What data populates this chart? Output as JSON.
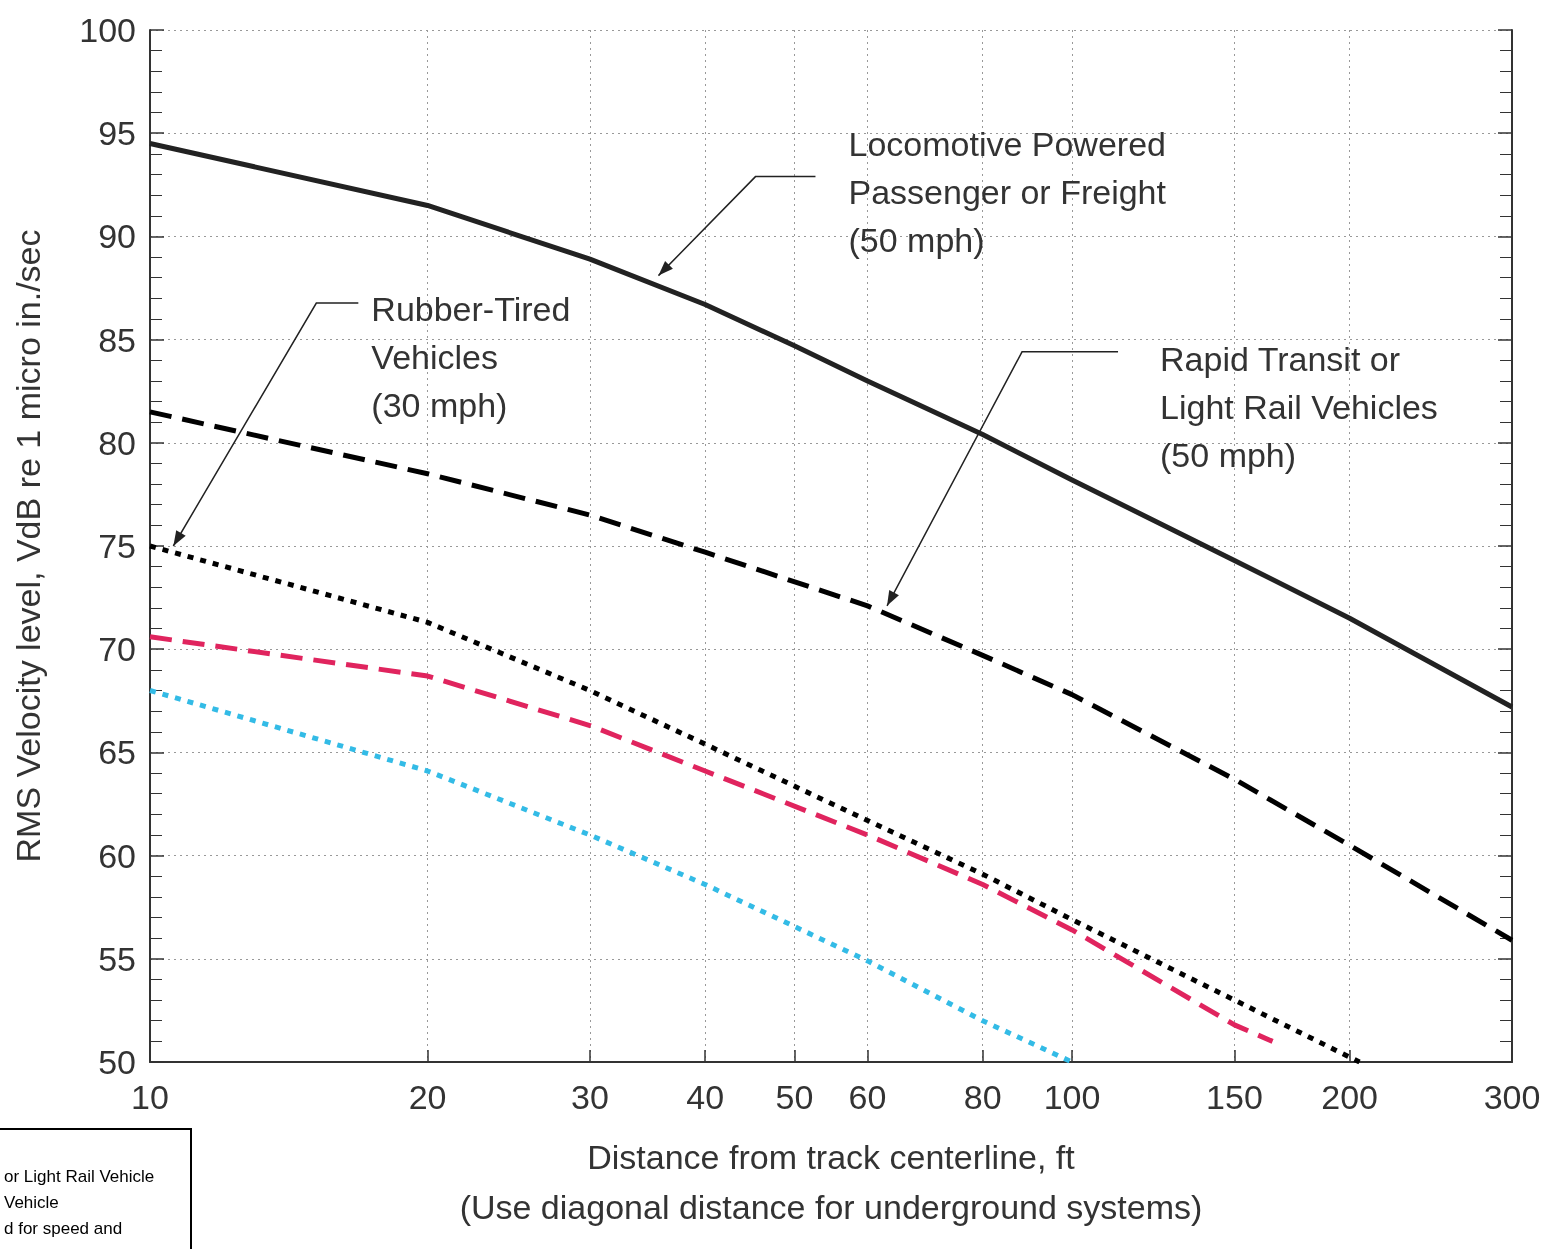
{
  "chart_data": {
    "type": "line",
    "xlabel": "Distance from track centerline, ft\n(Use diagonal distance for underground systems)",
    "ylabel": "RMS Velocity level, VdB re 1 micro in./sec",
    "log": "x",
    "xlim": [
      10,
      300
    ],
    "xticks": [
      10,
      20,
      30,
      40,
      50,
      60,
      80,
      100,
      150,
      200,
      300
    ],
    "ylim": [
      50,
      100
    ],
    "yticks": [
      50,
      55,
      60,
      65,
      70,
      75,
      80,
      85,
      90,
      95,
      100
    ],
    "grid": true,
    "legend": false,
    "marker": "none",
    "series": [
      {
        "name": "Locomotive Powered\nPassenger or Freight\n(50 mph)",
        "color": "#222222",
        "line_style": "solid",
        "x": [
          10,
          20,
          30,
          40,
          50,
          60,
          80,
          100,
          150,
          200,
          300
        ],
        "values": [
          94.5,
          91.5,
          88.9,
          86.7,
          84.7,
          83.0,
          80.4,
          78.2,
          74.3,
          71.5,
          67.2
        ]
      },
      {
        "name": "Rapid Transit or\nLight Rail Vehicles\n(50 mph)",
        "color": "#000000",
        "line_style": "dashed",
        "x": [
          10,
          20,
          30,
          40,
          60,
          80,
          100,
          150,
          200,
          300
        ],
        "values": [
          81.5,
          78.5,
          76.5,
          74.7,
          72.1,
          69.7,
          67.8,
          63.7,
          60.5,
          55.9
        ]
      },
      {
        "name": "Rubber-Tired\nVehicles\n(30 mph)",
        "color": "#000000",
        "line_style": "dotted",
        "x": [
          10,
          20,
          30,
          40,
          60,
          80,
          100,
          150,
          205
        ],
        "values": [
          75.0,
          71.3,
          68.0,
          65.4,
          61.7,
          59.1,
          56.9,
          53.0,
          50.0
        ]
      },
      {
        "color": "#e0245e",
        "line_style": "dashed",
        "x": [
          10,
          20,
          30,
          40,
          60,
          80,
          100,
          150,
          165
        ],
        "values": [
          70.6,
          68.7,
          66.3,
          64.1,
          61.0,
          58.6,
          56.4,
          51.8,
          51.0
        ]
      },
      {
        "color": "#33bbe6",
        "line_style": "dotted",
        "x": [
          10,
          20,
          30,
          40,
          60,
          80,
          100
        ],
        "values": [
          68.0,
          64.1,
          61.0,
          58.6,
          54.9,
          52.0,
          50.0
        ]
      }
    ],
    "annotations": [
      "or Light Rail Vehicle\nVehicle\nd for speed and"
    ]
  }
}
